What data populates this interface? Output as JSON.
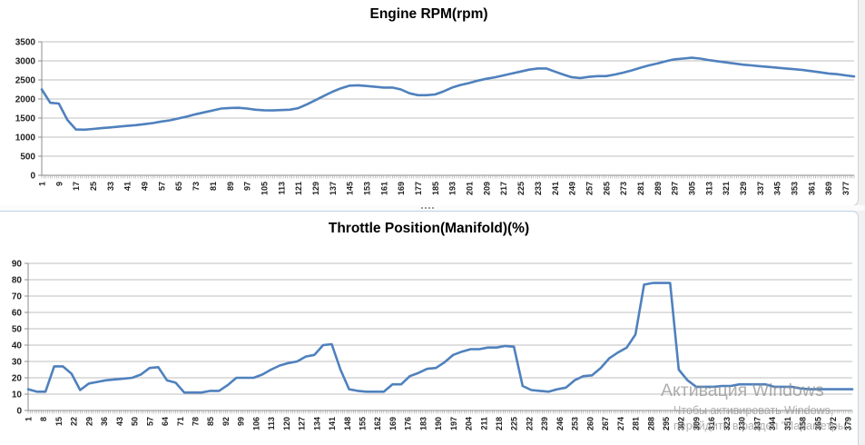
{
  "watermark": {
    "line1": "Активация Windows",
    "line2": "Чтобы активировать Windows,",
    "line3": "перейдите в раздел \"Параметры\"."
  },
  "colors": {
    "line": "#4f81bd",
    "grid": "#bfbfbf",
    "axis": "#8c8c8c",
    "text": "#1f1f1f",
    "title": "#000000"
  },
  "chart_data": [
    {
      "type": "line",
      "title": "Engine RPM(rpm)",
      "xlabel": "",
      "ylabel": "",
      "y_min": 0,
      "y_max": 3500,
      "y_step": 500,
      "x_label_start": 1,
      "x_label_step": 8,
      "x_label_count": 48,
      "idx_step": 4,
      "grid": true,
      "legend": "none",
      "values": [
        2250,
        1900,
        1880,
        1450,
        1200,
        1195,
        1215,
        1235,
        1255,
        1275,
        1295,
        1315,
        1340,
        1370,
        1410,
        1440,
        1490,
        1540,
        1600,
        1650,
        1700,
        1750,
        1765,
        1770,
        1750,
        1720,
        1705,
        1700,
        1710,
        1720,
        1760,
        1860,
        1970,
        2080,
        2190,
        2280,
        2350,
        2360,
        2340,
        2320,
        2300,
        2300,
        2250,
        2150,
        2100,
        2100,
        2120,
        2200,
        2300,
        2370,
        2420,
        2480,
        2530,
        2570,
        2620,
        2670,
        2720,
        2770,
        2800,
        2800,
        2720,
        2640,
        2570,
        2550,
        2580,
        2600,
        2600,
        2640,
        2690,
        2750,
        2820,
        2880,
        2930,
        2990,
        3040,
        3060,
        3080,
        3060,
        3020,
        2990,
        2960,
        2930,
        2900,
        2880,
        2860,
        2840,
        2820,
        2800,
        2780,
        2760,
        2730,
        2700,
        2670,
        2650,
        2620,
        2590
      ]
    },
    {
      "type": "line",
      "title": "Throttle Position(Manifold)(%)",
      "xlabel": "",
      "ylabel": "",
      "y_min": 0,
      "y_max": 90,
      "y_step": 10,
      "x_label_start": 1,
      "x_label_step": 7,
      "x_label_count": 55,
      "idx_step": 4,
      "grid": true,
      "legend": "none",
      "values": [
        13,
        11.5,
        11.5,
        27,
        27,
        22.5,
        12.5,
        16.5,
        17.5,
        18.5,
        19,
        19.5,
        20,
        22,
        26,
        26.5,
        18.5,
        17,
        11,
        11,
        11,
        12,
        12,
        15.5,
        20,
        20,
        20,
        22,
        25,
        27.5,
        29,
        30,
        33,
        34,
        40,
        40.5,
        25,
        13,
        12,
        11.5,
        11.5,
        11.5,
        16,
        16,
        21,
        23,
        25.5,
        26,
        29.5,
        34,
        36,
        37.5,
        37.5,
        38.5,
        38.5,
        39.5,
        39,
        15,
        12.5,
        12,
        11.5,
        13,
        14,
        18.5,
        21,
        21.5,
        26,
        32,
        35.5,
        38.5,
        46.5,
        77,
        78,
        78,
        78,
        25,
        18.5,
        14.5,
        14.5,
        14.5,
        15,
        15,
        16,
        16,
        16,
        16,
        14.5,
        14.5,
        14.5,
        13.5,
        13,
        13,
        13,
        13,
        13,
        13
      ]
    }
  ]
}
